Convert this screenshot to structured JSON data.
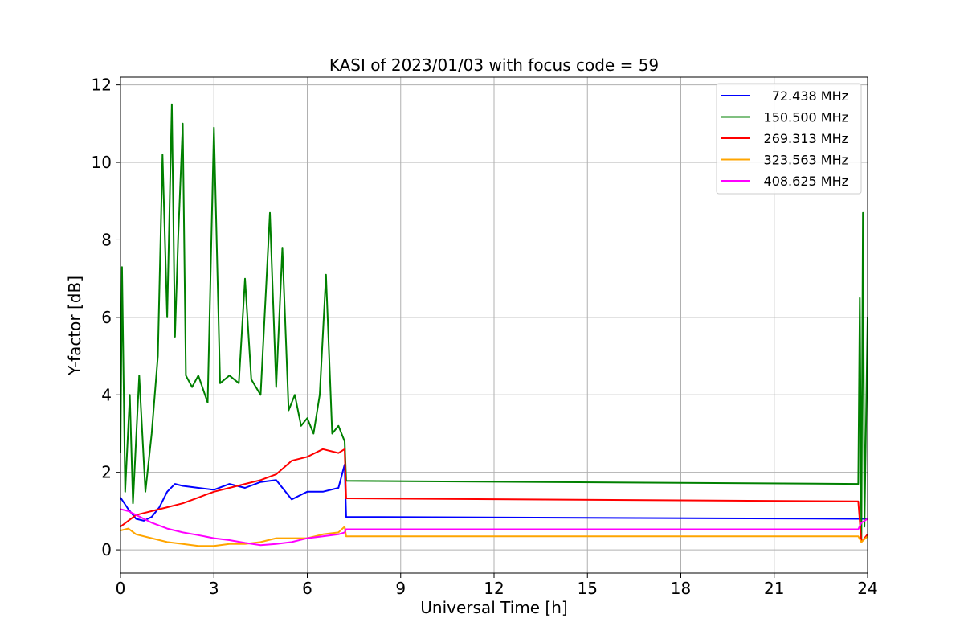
{
  "chart_data": {
    "type": "line",
    "title": "KASI of 2023/01/03 with focus code = 59",
    "xlabel": "Universal Time [h]",
    "ylabel": "Y-factor [dB]",
    "xlim": [
      0,
      24
    ],
    "ylim": [
      -0.6,
      12.2
    ],
    "xticks": [
      0,
      3,
      6,
      9,
      12,
      15,
      18,
      21,
      24
    ],
    "yticks": [
      0,
      2,
      4,
      6,
      8,
      10,
      12
    ],
    "grid": true,
    "legend_position": "top-right",
    "series": [
      {
        "name": "72.438 MHz",
        "color": "#0000ff",
        "x": [
          0.0,
          0.25,
          0.5,
          0.75,
          1.0,
          1.25,
          1.5,
          1.75,
          2.0,
          2.5,
          3.0,
          3.5,
          4.0,
          4.5,
          5.0,
          5.5,
          6.0,
          6.5,
          7.0,
          7.2,
          7.25,
          23.7,
          23.8,
          24.0
        ],
        "y": [
          1.35,
          1.05,
          0.8,
          0.75,
          0.85,
          1.1,
          1.5,
          1.7,
          1.65,
          1.6,
          1.55,
          1.7,
          1.6,
          1.75,
          1.8,
          1.3,
          1.5,
          1.5,
          1.6,
          2.2,
          0.85,
          0.8,
          0.8,
          0.8
        ]
      },
      {
        "name": "150.500 MHz",
        "color": "#008000",
        "x": [
          0.0,
          0.05,
          0.15,
          0.3,
          0.4,
          0.6,
          0.8,
          1.0,
          1.2,
          1.35,
          1.5,
          1.65,
          1.75,
          1.85,
          2.0,
          2.1,
          2.3,
          2.5,
          2.8,
          3.0,
          3.2,
          3.5,
          3.8,
          4.0,
          4.2,
          4.5,
          4.8,
          5.0,
          5.2,
          5.4,
          5.6,
          5.8,
          6.0,
          6.2,
          6.4,
          6.6,
          6.8,
          7.0,
          7.2,
          7.25,
          23.7,
          23.75,
          23.8,
          23.85,
          23.9,
          24.0
        ],
        "y": [
          2.5,
          7.3,
          1.5,
          4.0,
          1.2,
          4.5,
          1.5,
          3.0,
          5.0,
          10.2,
          6.0,
          11.5,
          5.5,
          8.0,
          11.0,
          4.5,
          4.2,
          4.5,
          3.8,
          10.9,
          4.3,
          4.5,
          4.3,
          7.0,
          4.4,
          4.0,
          8.7,
          4.2,
          7.8,
          3.6,
          4.0,
          3.2,
          3.4,
          3.0,
          4.0,
          7.1,
          3.0,
          3.2,
          2.8,
          1.78,
          1.7,
          6.5,
          0.3,
          8.7,
          0.6,
          6.0
        ]
      },
      {
        "name": "269.313 MHz",
        "color": "#ff0000",
        "x": [
          0.0,
          0.25,
          0.5,
          0.75,
          1.0,
          1.5,
          2.0,
          2.5,
          3.0,
          3.5,
          4.0,
          4.5,
          5.0,
          5.5,
          6.0,
          6.5,
          7.0,
          7.2,
          7.25,
          23.7,
          23.8,
          24.0
        ],
        "y": [
          0.6,
          0.75,
          0.9,
          0.95,
          1.0,
          1.1,
          1.2,
          1.35,
          1.5,
          1.6,
          1.7,
          1.8,
          1.95,
          2.3,
          2.4,
          2.6,
          2.5,
          2.6,
          1.33,
          1.25,
          0.2,
          0.4
        ]
      },
      {
        "name": "323.563 MHz",
        "color": "#ffa500",
        "x": [
          0.0,
          0.25,
          0.5,
          1.0,
          1.5,
          2.0,
          2.5,
          3.0,
          3.5,
          4.0,
          4.5,
          5.0,
          5.5,
          6.0,
          6.5,
          7.0,
          7.2,
          7.25,
          23.7,
          23.8,
          24.0
        ],
        "y": [
          0.5,
          0.55,
          0.4,
          0.3,
          0.2,
          0.15,
          0.1,
          0.1,
          0.15,
          0.15,
          0.2,
          0.3,
          0.3,
          0.3,
          0.4,
          0.45,
          0.6,
          0.35,
          0.35,
          0.2,
          0.35
        ]
      },
      {
        "name": "408.625 MHz",
        "color": "#ff00ff",
        "x": [
          0.0,
          0.25,
          0.5,
          0.75,
          1.0,
          1.5,
          2.0,
          2.5,
          3.0,
          3.5,
          4.0,
          4.5,
          5.0,
          5.5,
          6.0,
          6.5,
          7.0,
          7.2,
          7.25,
          23.7,
          23.8,
          24.0
        ],
        "y": [
          1.05,
          1.0,
          0.9,
          0.8,
          0.7,
          0.55,
          0.45,
          0.38,
          0.3,
          0.25,
          0.18,
          0.12,
          0.15,
          0.2,
          0.3,
          0.35,
          0.4,
          0.45,
          0.53,
          0.53,
          0.7,
          0.8
        ]
      }
    ]
  }
}
